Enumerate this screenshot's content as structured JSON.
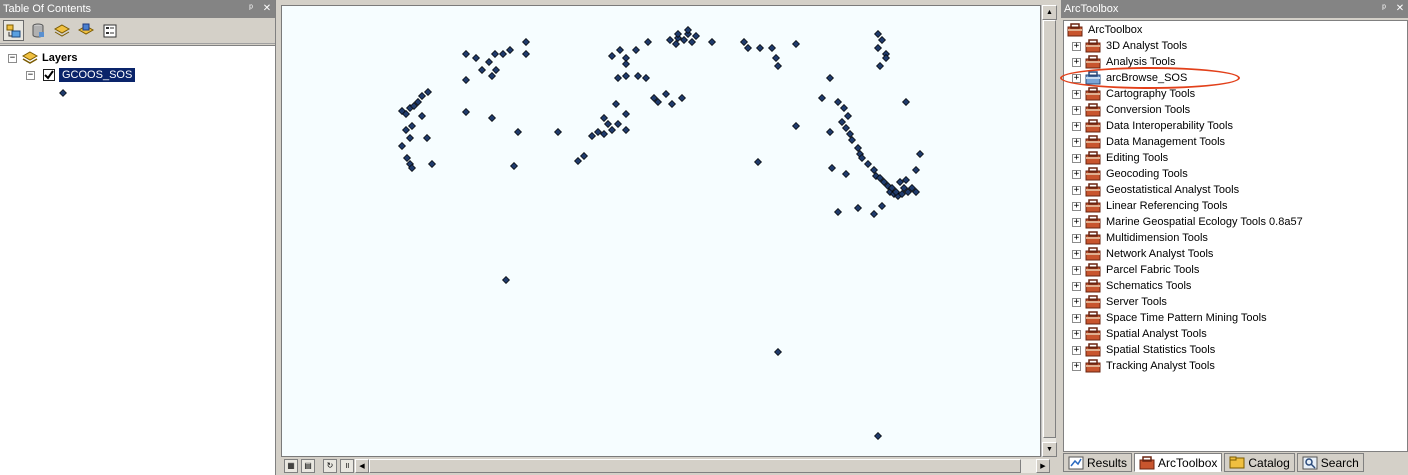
{
  "toc": {
    "title": "Table Of Contents",
    "title_buttons": [
      "pin-icon",
      "close-icon"
    ],
    "toolbar_icons": [
      "list-by-drawing-order-icon",
      "list-by-source-icon",
      "list-by-visibility-icon",
      "list-by-selection-icon",
      "options-icon"
    ],
    "tree": {
      "root_label": "Layers",
      "layer_label": "GCOOS_SOS",
      "layer_checked": true
    }
  },
  "map": {
    "background": "#f6fdff",
    "point_color": "#1f3a6a",
    "status_icons": [
      "layout-view-icon",
      "data-view-icon",
      "refresh-icon",
      "pause-icon",
      "scroll-left-icon"
    ]
  },
  "toolbox": {
    "title": "ArcToolbox",
    "root_label": "ArcToolbox",
    "items": [
      {
        "label": "3D Analyst Tools"
      },
      {
        "label": "Analysis Tools"
      },
      {
        "label": "arcBrowse_SOS",
        "highlighted": true
      },
      {
        "label": "Cartography Tools"
      },
      {
        "label": "Conversion Tools"
      },
      {
        "label": "Data Interoperability Tools"
      },
      {
        "label": "Data Management Tools"
      },
      {
        "label": "Editing Tools"
      },
      {
        "label": "Geocoding Tools"
      },
      {
        "label": "Geostatistical Analyst Tools"
      },
      {
        "label": "Linear Referencing Tools"
      },
      {
        "label": "Marine Geospatial Ecology Tools 0.8a57"
      },
      {
        "label": "Multidimension Tools"
      },
      {
        "label": "Network Analyst Tools"
      },
      {
        "label": "Parcel Fabric Tools"
      },
      {
        "label": "Schematics Tools"
      },
      {
        "label": "Server Tools"
      },
      {
        "label": "Space Time Pattern Mining Tools"
      },
      {
        "label": "Spatial Analyst Tools"
      },
      {
        "label": "Spatial Statistics Tools"
      },
      {
        "label": "Tracking Analyst Tools"
      }
    ],
    "tabs": [
      {
        "label": "Results",
        "icon": "results-icon"
      },
      {
        "label": "ArcToolbox",
        "icon": "toolbox-icon",
        "active": true
      },
      {
        "label": "Catalog",
        "icon": "catalog-icon"
      },
      {
        "label": "Search",
        "icon": "search-icon"
      }
    ],
    "annotation_color": "#e2401a"
  }
}
